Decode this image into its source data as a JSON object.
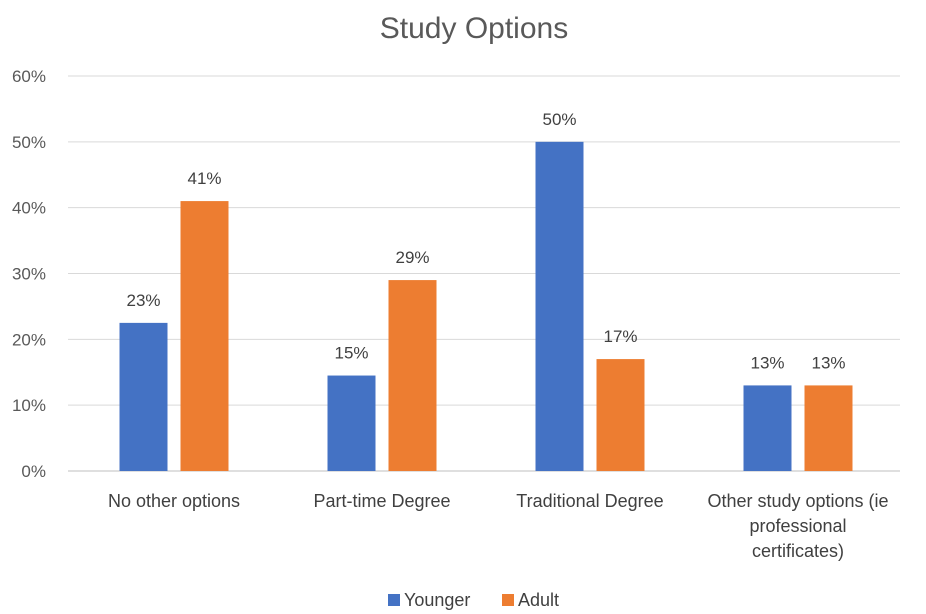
{
  "chart_data": {
    "type": "bar",
    "title": "Study Options",
    "categories": [
      [
        "No other options"
      ],
      [
        "Part-time Degree"
      ],
      [
        "Traditional Degree"
      ],
      [
        "Other study options (ie",
        "professional",
        "certificates)"
      ]
    ],
    "series": [
      {
        "name": "Younger",
        "color": "#4472C4",
        "values": [
          22.5,
          14.5,
          50,
          13
        ],
        "labels": [
          "23%",
          "15%",
          "50%",
          "13%"
        ]
      },
      {
        "name": "Adult",
        "color": "#ED7D31",
        "values": [
          41,
          29,
          17,
          13
        ],
        "labels": [
          "41%",
          "29%",
          "17%",
          "13%"
        ]
      }
    ],
    "y_ticks": [
      "0%",
      "10%",
      "20%",
      "30%",
      "40%",
      "50%",
      "60%"
    ],
    "ylim": [
      0,
      60
    ],
    "grid": true,
    "legend": "bottom"
  }
}
